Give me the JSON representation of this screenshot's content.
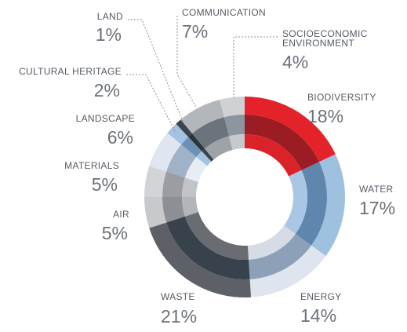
{
  "chart_data": {
    "type": "donut",
    "categories": [
      "BIODIVERSITY",
      "WATER",
      "ENERGY",
      "WASTE",
      "AIR",
      "MATERIALS",
      "LANDSCAPE",
      "CULTURAL HERITAGE",
      "LAND",
      "COMMUNICATION",
      "SOCIOECONOMIC ENVIRONMENT"
    ],
    "values": [
      18,
      17,
      14,
      21,
      5,
      5,
      6,
      2,
      1,
      7,
      4
    ],
    "value_labels": [
      "18%",
      "17%",
      "14%",
      "21%",
      "5%",
      "5%",
      "6%",
      "2%",
      "1%",
      "7%",
      "4%"
    ],
    "colors": [
      [
        "#e42229",
        "#9b1c22",
        "#da2229"
      ],
      [
        "#9fc1e0",
        "#5f87ad",
        "#a9c7e4"
      ],
      [
        "#dfe5ef",
        "#8ca1b7",
        "#d5dce7"
      ],
      [
        "#5d6167",
        "#37424c",
        "#696d72"
      ],
      [
        "#c8c9cb",
        "#8c8f93",
        "#b3b5b8"
      ],
      [
        "#d2d4d6",
        "#9a9da1",
        "#c1c3c6"
      ],
      [
        "#dfe6f0",
        "#9fb2c6",
        "#e7edf4"
      ],
      [
        "#a3c3e3",
        "#6d90b5",
        "#a3c3e3"
      ],
      [
        "#3b444d",
        "#2c343c",
        "#3b444d"
      ],
      [
        "#b3b6ba",
        "#6b737c",
        "#9fa3a8"
      ],
      [
        "#cfd1d3",
        "#8b96a1",
        "#c7cacd"
      ]
    ]
  }
}
